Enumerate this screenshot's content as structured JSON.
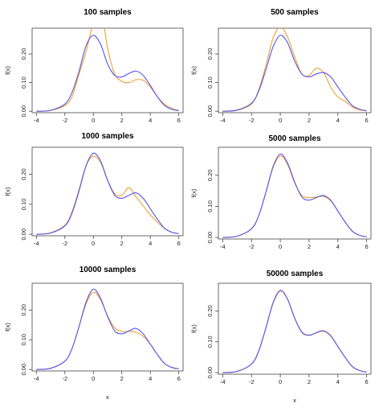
{
  "figure": {
    "colors": {
      "estimate": "#5555ee",
      "true_density": "#f0a030",
      "axis": "#444444"
    }
  },
  "chart_data": [
    {
      "type": "line",
      "title": "100  samples",
      "xlabel": "",
      "ylabel": "f(x)",
      "xlim": [
        -4.3,
        6.3
      ],
      "ylim": [
        -0.005,
        0.29
      ],
      "xticks": [
        "-4",
        "-2",
        "0",
        "2",
        "4",
        "6"
      ],
      "yticks": [
        "0.00",
        "0.10",
        "0.20"
      ],
      "x": [
        -4,
        -3,
        -2,
        -1.5,
        -1,
        -0.5,
        0,
        0.5,
        1,
        1.5,
        2,
        2.5,
        3,
        3.5,
        4,
        4.5,
        5,
        5.5,
        6
      ],
      "series": [
        {
          "values": [
            0.0,
            0.003,
            0.02,
            0.05,
            0.13,
            0.21,
            0.31,
            0.37,
            0.22,
            0.13,
            0.105,
            0.1,
            0.11,
            0.108,
            0.085,
            0.05,
            0.025,
            0.01,
            0.003
          ]
        },
        {
          "values": [
            0.0,
            0.003,
            0.025,
            0.065,
            0.14,
            0.23,
            0.265,
            0.235,
            0.165,
            0.125,
            0.12,
            0.132,
            0.14,
            0.125,
            0.09,
            0.05,
            0.02,
            0.007,
            0.002
          ]
        }
      ]
    },
    {
      "type": "line",
      "title": "500  samples",
      "xlabel": "",
      "ylabel": "f(x)",
      "xlim": [
        -4.3,
        6.3
      ],
      "ylim": [
        -0.005,
        0.29
      ],
      "xticks": [
        "-4",
        "-2",
        "0",
        "2",
        "4",
        "6"
      ],
      "yticks": [
        "0.00",
        "0.10",
        "0.20"
      ],
      "x": [
        -4,
        -3,
        -2,
        -1.5,
        -1,
        -0.5,
        0,
        0.5,
        1,
        1.5,
        2,
        2.5,
        3,
        3.5,
        4,
        4.5,
        5,
        5.5,
        6
      ],
      "series": [
        {
          "values": [
            0.0,
            0.003,
            0.025,
            0.075,
            0.16,
            0.255,
            0.295,
            0.26,
            0.19,
            0.13,
            0.125,
            0.15,
            0.135,
            0.085,
            0.05,
            0.035,
            0.015,
            0.005,
            0.001
          ]
        },
        {
          "values": [
            0.0,
            0.004,
            0.028,
            0.07,
            0.145,
            0.225,
            0.265,
            0.24,
            0.175,
            0.13,
            0.12,
            0.13,
            0.135,
            0.12,
            0.085,
            0.05,
            0.02,
            0.007,
            0.002
          ]
        }
      ]
    },
    {
      "type": "line",
      "title": "1000  samples",
      "xlabel": "",
      "ylabel": "f(x)",
      "xlim": [
        -4.3,
        6.3
      ],
      "ylim": [
        -0.005,
        0.29
      ],
      "xticks": [
        "-4",
        "-2",
        "0",
        "2",
        "4",
        "6"
      ],
      "yticks": [
        "0.00",
        "0.10",
        "0.20"
      ],
      "x": [
        -4,
        -3,
        -2,
        -1.5,
        -1,
        -0.5,
        0,
        0.5,
        1,
        1.5,
        2,
        2.5,
        3,
        3.5,
        4,
        4.5,
        5,
        5.5,
        6
      ],
      "series": [
        {
          "values": [
            0.0,
            0.005,
            0.03,
            0.075,
            0.15,
            0.23,
            0.26,
            0.24,
            0.18,
            0.135,
            0.13,
            0.155,
            0.125,
            0.095,
            0.065,
            0.04,
            0.02,
            0.007,
            0.002
          ]
        },
        {
          "values": [
            0.0,
            0.004,
            0.028,
            0.07,
            0.145,
            0.23,
            0.27,
            0.245,
            0.18,
            0.13,
            0.12,
            0.13,
            0.138,
            0.12,
            0.085,
            0.05,
            0.02,
            0.007,
            0.002
          ]
        }
      ]
    },
    {
      "type": "line",
      "title": "5000  samples",
      "xlabel": "",
      "ylabel": "f(x)",
      "xlim": [
        -4.3,
        6.3
      ],
      "ylim": [
        -0.005,
        0.29
      ],
      "xticks": [
        "-4",
        "-2",
        "0",
        "2",
        "4",
        "6"
      ],
      "yticks": [
        "0.00",
        "0.10",
        "0.20"
      ],
      "x": [
        -4,
        -3,
        -2,
        -1.5,
        -1,
        -0.5,
        0,
        0.5,
        1,
        1.5,
        2,
        2.5,
        3,
        3.5,
        4,
        4.5,
        5,
        5.5,
        6
      ],
      "series": [
        {
          "values": [
            0.0,
            0.004,
            0.027,
            0.07,
            0.145,
            0.225,
            0.262,
            0.235,
            0.175,
            0.135,
            0.128,
            0.13,
            0.132,
            0.118,
            0.085,
            0.05,
            0.02,
            0.007,
            0.002
          ]
        },
        {
          "values": [
            0.0,
            0.004,
            0.028,
            0.07,
            0.145,
            0.228,
            0.268,
            0.24,
            0.178,
            0.13,
            0.12,
            0.128,
            0.135,
            0.12,
            0.085,
            0.05,
            0.02,
            0.007,
            0.002
          ]
        }
      ]
    },
    {
      "type": "line",
      "title": "10000  samples",
      "xlabel": "x",
      "ylabel": "f(x)",
      "xlim": [
        -4.3,
        6.3
      ],
      "ylim": [
        -0.005,
        0.29
      ],
      "xticks": [
        "-4",
        "-2",
        "0",
        "2",
        "4",
        "6"
      ],
      "yticks": [
        "0.00",
        "0.10",
        "0.20"
      ],
      "x": [
        -4,
        -3,
        -2,
        -1.5,
        -1,
        -0.5,
        0,
        0.5,
        1,
        1.5,
        2,
        2.5,
        3,
        3.5,
        4,
        4.5,
        5,
        5.5,
        6
      ],
      "series": [
        {
          "values": [
            0.0,
            0.004,
            0.028,
            0.07,
            0.145,
            0.222,
            0.26,
            0.235,
            0.18,
            0.14,
            0.128,
            0.128,
            0.125,
            0.112,
            0.085,
            0.05,
            0.02,
            0.007,
            0.002
          ]
        },
        {
          "values": [
            0.0,
            0.004,
            0.028,
            0.07,
            0.145,
            0.228,
            0.27,
            0.24,
            0.178,
            0.13,
            0.12,
            0.13,
            0.138,
            0.12,
            0.085,
            0.05,
            0.02,
            0.007,
            0.002
          ]
        }
      ]
    },
    {
      "type": "line",
      "title": "50000  samples",
      "xlabel": "x",
      "ylabel": "f(x)",
      "xlim": [
        -4.3,
        6.3
      ],
      "ylim": [
        -0.005,
        0.29
      ],
      "xticks": [
        "-4",
        "-2",
        "0",
        "2",
        "4",
        "6"
      ],
      "yticks": [
        "0.00",
        "0.10",
        "0.20"
      ],
      "x": [
        -4,
        -3,
        -2,
        -1.5,
        -1,
        -0.5,
        0,
        0.5,
        1,
        1.5,
        2,
        2.5,
        3,
        3.5,
        4,
        4.5,
        5,
        5.5,
        6
      ],
      "series": [
        {
          "values": [
            0.0,
            0.004,
            0.028,
            0.07,
            0.145,
            0.225,
            0.265,
            0.238,
            0.176,
            0.132,
            0.122,
            0.129,
            0.134,
            0.119,
            0.085,
            0.05,
            0.02,
            0.007,
            0.002
          ]
        },
        {
          "values": [
            0.0,
            0.004,
            0.028,
            0.07,
            0.145,
            0.227,
            0.267,
            0.239,
            0.177,
            0.131,
            0.121,
            0.13,
            0.136,
            0.12,
            0.085,
            0.05,
            0.02,
            0.007,
            0.002
          ]
        }
      ]
    }
  ]
}
